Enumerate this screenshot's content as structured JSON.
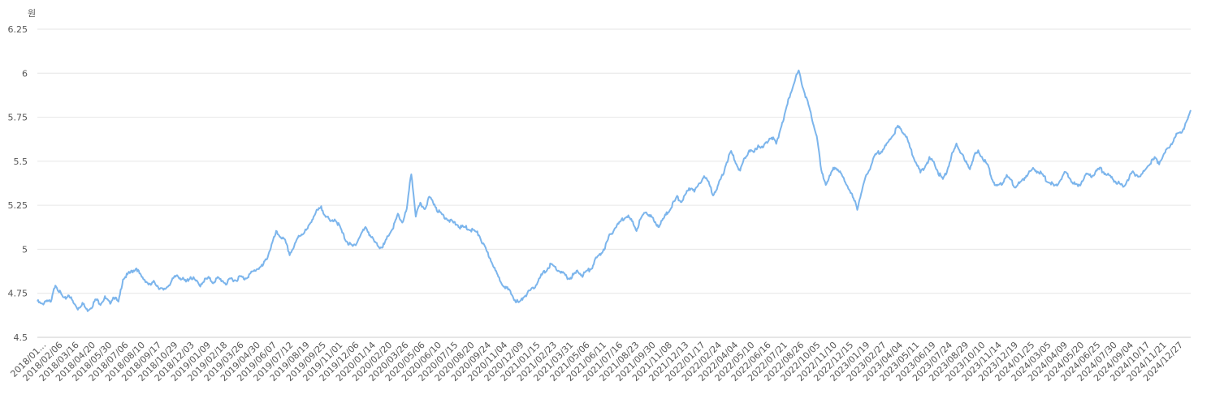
{
  "chart_data": {
    "type": "line",
    "ylabel": "원",
    "ylim": [
      4.5,
      6.25
    ],
    "yticks": [
      "4.5",
      "4.75",
      "5",
      "5.25",
      "5.5",
      "5.75",
      "6",
      "6.25"
    ],
    "grid": true,
    "xlabels": [
      "2018/01...",
      "2018/02/06",
      "2018/03/16",
      "2018/04/20",
      "2018/05/30",
      "2018/07/06",
      "2018/08/10",
      "2018/09/17",
      "2018/10/29",
      "2018/12/03",
      "2019/01/09",
      "2019/02/18",
      "2019/03/26",
      "2019/04/30",
      "2019/06/07",
      "2019/07/12",
      "2019/08/19",
      "2019/09/25",
      "2019/11/01",
      "2019/12/06",
      "2020/01/14",
      "2020/02/20",
      "2020/03/26",
      "2020/05/06",
      "2020/06/10",
      "2020/07/15",
      "2020/08/20",
      "2020/09/24",
      "2020/11/04",
      "2020/12/09",
      "2021/01/15",
      "2021/02/23",
      "2021/03/31",
      "2021/05/06",
      "2021/06/11",
      "2021/07/16",
      "2021/08/23",
      "2021/09/30",
      "2021/11/08",
      "2021/12/13",
      "2022/01/17",
      "2022/02/24",
      "2022/04/04",
      "2022/05/10",
      "2022/06/16",
      "2022/07/21",
      "2022/08/26",
      "2022/10/05",
      "2022/11/10",
      "2022/12/15",
      "2023/01/19",
      "2023/02/27",
      "2023/04/04",
      "2023/05/11",
      "2023/06/19",
      "2023/07/24",
      "2023/08/29",
      "2023/10/10",
      "2023/11/14",
      "2023/12/19",
      "2024/01/25",
      "2024/03/05",
      "2024/04/09",
      "2024/05/20",
      "2024/06/25",
      "2024/07/30",
      "2024/09/04",
      "2024/10/17",
      "2024/11/21",
      "2024/12/27"
    ],
    "series": [
      {
        "color": "#7cb5ec",
        "values": [
          4.71,
          4.69,
          4.72,
          4.7,
          4.81,
          4.76,
          4.72,
          4.75,
          4.7,
          4.67,
          4.7,
          4.66,
          4.68,
          4.72,
          4.7,
          4.73,
          4.7,
          4.74,
          4.7,
          4.84,
          4.86,
          4.88,
          4.9,
          4.85,
          4.83,
          4.8,
          4.82,
          4.79,
          4.77,
          4.8,
          4.83,
          4.86,
          4.84,
          4.82,
          4.85,
          4.83,
          4.8,
          4.83,
          4.84,
          4.82,
          4.84,
          4.83,
          4.81,
          4.84,
          4.83,
          4.85,
          4.84,
          4.86,
          4.88,
          4.9,
          4.91,
          4.96,
          5.03,
          5.1,
          5.08,
          5.05,
          4.98,
          5.02,
          5.08,
          5.1,
          5.12,
          5.18,
          5.22,
          5.24,
          5.2,
          5.16,
          5.18,
          5.14,
          5.08,
          5.04,
          5.02,
          5.05,
          5.1,
          5.13,
          5.08,
          5.04,
          5.02,
          5.03,
          5.09,
          5.13,
          5.2,
          5.16,
          5.23,
          5.44,
          5.2,
          5.26,
          5.24,
          5.3,
          5.27,
          5.22,
          5.2,
          5.18,
          5.16,
          5.15,
          5.13,
          5.13,
          5.12,
          5.11,
          5.09,
          5.03,
          4.98,
          4.93,
          4.86,
          4.82,
          4.79,
          4.76,
          4.72,
          4.7,
          4.74,
          4.76,
          4.78,
          4.82,
          4.86,
          4.89,
          4.92,
          4.9,
          4.88,
          4.86,
          4.84,
          4.86,
          4.88,
          4.86,
          4.88,
          4.9,
          4.95,
          4.98,
          5.02,
          5.08,
          5.12,
          5.15,
          5.18,
          5.2,
          5.16,
          5.12,
          5.18,
          5.22,
          5.2,
          5.16,
          5.14,
          5.18,
          5.22,
          5.26,
          5.3,
          5.28,
          5.32,
          5.36,
          5.34,
          5.38,
          5.43,
          5.38,
          5.32,
          5.36,
          5.42,
          5.5,
          5.56,
          5.5,
          5.45,
          5.52,
          5.57,
          5.55,
          5.6,
          5.58,
          5.62,
          5.65,
          5.6,
          5.7,
          5.78,
          5.88,
          5.96,
          6.02,
          5.92,
          5.84,
          5.74,
          5.65,
          5.45,
          5.38,
          5.42,
          5.48,
          5.45,
          5.4,
          5.36,
          5.3,
          5.24,
          5.34,
          5.42,
          5.48,
          5.54,
          5.56,
          5.58,
          5.62,
          5.66,
          5.7,
          5.68,
          5.64,
          5.56,
          5.5,
          5.44,
          5.48,
          5.52,
          5.5,
          5.44,
          5.4,
          5.46,
          5.54,
          5.6,
          5.56,
          5.5,
          5.47,
          5.54,
          5.56,
          5.52,
          5.48,
          5.4,
          5.36,
          5.38,
          5.42,
          5.4,
          5.36,
          5.38,
          5.41,
          5.44,
          5.46,
          5.45,
          5.43,
          5.4,
          5.38,
          5.36,
          5.4,
          5.44,
          5.42,
          5.38,
          5.36,
          5.4,
          5.43,
          5.42,
          5.45,
          5.46,
          5.44,
          5.42,
          5.4,
          5.38,
          5.36,
          5.4,
          5.44,
          5.43,
          5.42,
          5.46,
          5.5,
          5.52,
          5.5,
          5.54,
          5.58,
          5.62,
          5.66,
          5.68,
          5.72,
          5.79
        ]
      }
    ]
  }
}
